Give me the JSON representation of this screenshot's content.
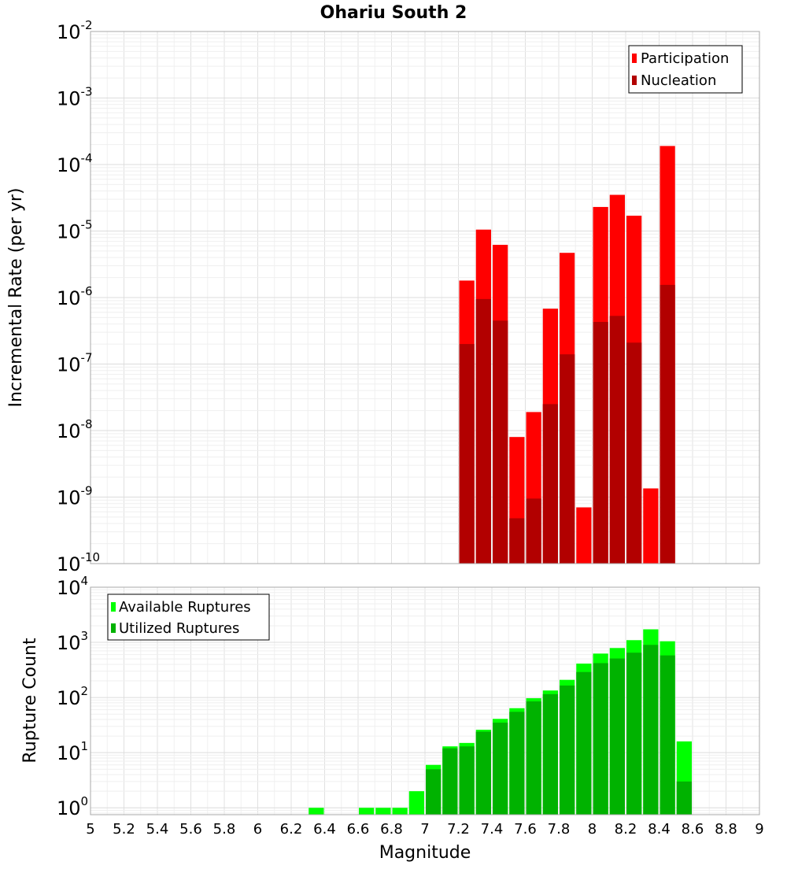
{
  "chart_data": [
    {
      "type": "bar",
      "title": "Ohariu South 2",
      "xlabel": "",
      "ylabel": "Incremental Rate (per yr)",
      "yscale": "log",
      "ylim": [
        1e-10,
        0.01
      ],
      "xlim": [
        5,
        9
      ],
      "grid": true,
      "legend_position": "top-right",
      "bar_width": 0.1,
      "y_ticks": [
        {
          "base": "10",
          "exp": "-10"
        },
        {
          "base": "10",
          "exp": "-9"
        },
        {
          "base": "10",
          "exp": "-8"
        },
        {
          "base": "10",
          "exp": "-7"
        },
        {
          "base": "10",
          "exp": "-6"
        },
        {
          "base": "10",
          "exp": "-5"
        },
        {
          "base": "10",
          "exp": "-4"
        },
        {
          "base": "10",
          "exp": "-3"
        },
        {
          "base": "10",
          "exp": "-2"
        }
      ],
      "series": [
        {
          "name": "Participation",
          "color": "#ff0000",
          "x": [
            7.25,
            7.35,
            7.45,
            7.55,
            7.65,
            7.75,
            7.85,
            7.95,
            8.05,
            8.15,
            8.25,
            8.35,
            8.45
          ],
          "values": [
            1.8e-06,
            1.05e-05,
            6.2e-06,
            8e-09,
            1.9e-08,
            6.8e-07,
            4.7e-06,
            7e-10,
            2.3e-05,
            3.5e-05,
            1.7e-05,
            1.35e-09,
            0.00019
          ]
        },
        {
          "name": "Nucleation",
          "color": "#b20000",
          "x": [
            7.25,
            7.35,
            7.45,
            7.55,
            7.65,
            7.75,
            7.85,
            8.05,
            8.15,
            8.25,
            8.45
          ],
          "values": [
            2e-07,
            9.5e-07,
            4.5e-07,
            4.8e-10,
            9.5e-10,
            2.5e-08,
            1.4e-07,
            4.3e-07,
            5.3e-07,
            2.1e-07,
            1.55e-06
          ]
        }
      ]
    },
    {
      "type": "bar",
      "title": "",
      "xlabel": "Magnitude",
      "ylabel": "Rupture Count",
      "yscale": "log",
      "ylim": [
        0.75,
        10000
      ],
      "xlim": [
        5,
        9
      ],
      "grid": true,
      "legend_position": "top-left",
      "bar_width": 0.1,
      "x_ticks": [
        "5",
        "5.2",
        "5.4",
        "5.6",
        "5.8",
        "6",
        "6.2",
        "6.4",
        "6.6",
        "6.8",
        "7",
        "7.2",
        "7.4",
        "7.6",
        "7.8",
        "8",
        "8.2",
        "8.4",
        "8.6",
        "8.8",
        "9"
      ],
      "y_ticks": [
        {
          "base": "10",
          "exp": "0"
        },
        {
          "base": "10",
          "exp": "1"
        },
        {
          "base": "10",
          "exp": "2"
        },
        {
          "base": "10",
          "exp": "3"
        },
        {
          "base": "10",
          "exp": "4"
        }
      ],
      "series": [
        {
          "name": "Available Ruptures",
          "color": "#00ff00",
          "x": [
            6.35,
            6.65,
            6.75,
            6.85,
            6.95,
            7.05,
            7.15,
            7.25,
            7.35,
            7.45,
            7.55,
            7.65,
            7.75,
            7.85,
            7.95,
            8.05,
            8.15,
            8.25,
            8.35,
            8.45,
            8.55
          ],
          "values": [
            1,
            1,
            1,
            1,
            2,
            6,
            13,
            15,
            26,
            41,
            64,
            97,
            134,
            209,
            412,
            626,
            789,
            1096,
            1723,
            1047,
            16
          ]
        },
        {
          "name": "Utilized Ruptures",
          "color": "#00b200",
          "x": [
            7.05,
            7.15,
            7.25,
            7.35,
            7.45,
            7.55,
            7.65,
            7.75,
            7.85,
            7.95,
            8.05,
            8.15,
            8.25,
            8.35,
            8.45,
            8.55
          ],
          "values": [
            5,
            12,
            13,
            24,
            35,
            55,
            85,
            115,
            165,
            290,
            420,
            510,
            650,
            900,
            580,
            3
          ]
        }
      ]
    }
  ]
}
